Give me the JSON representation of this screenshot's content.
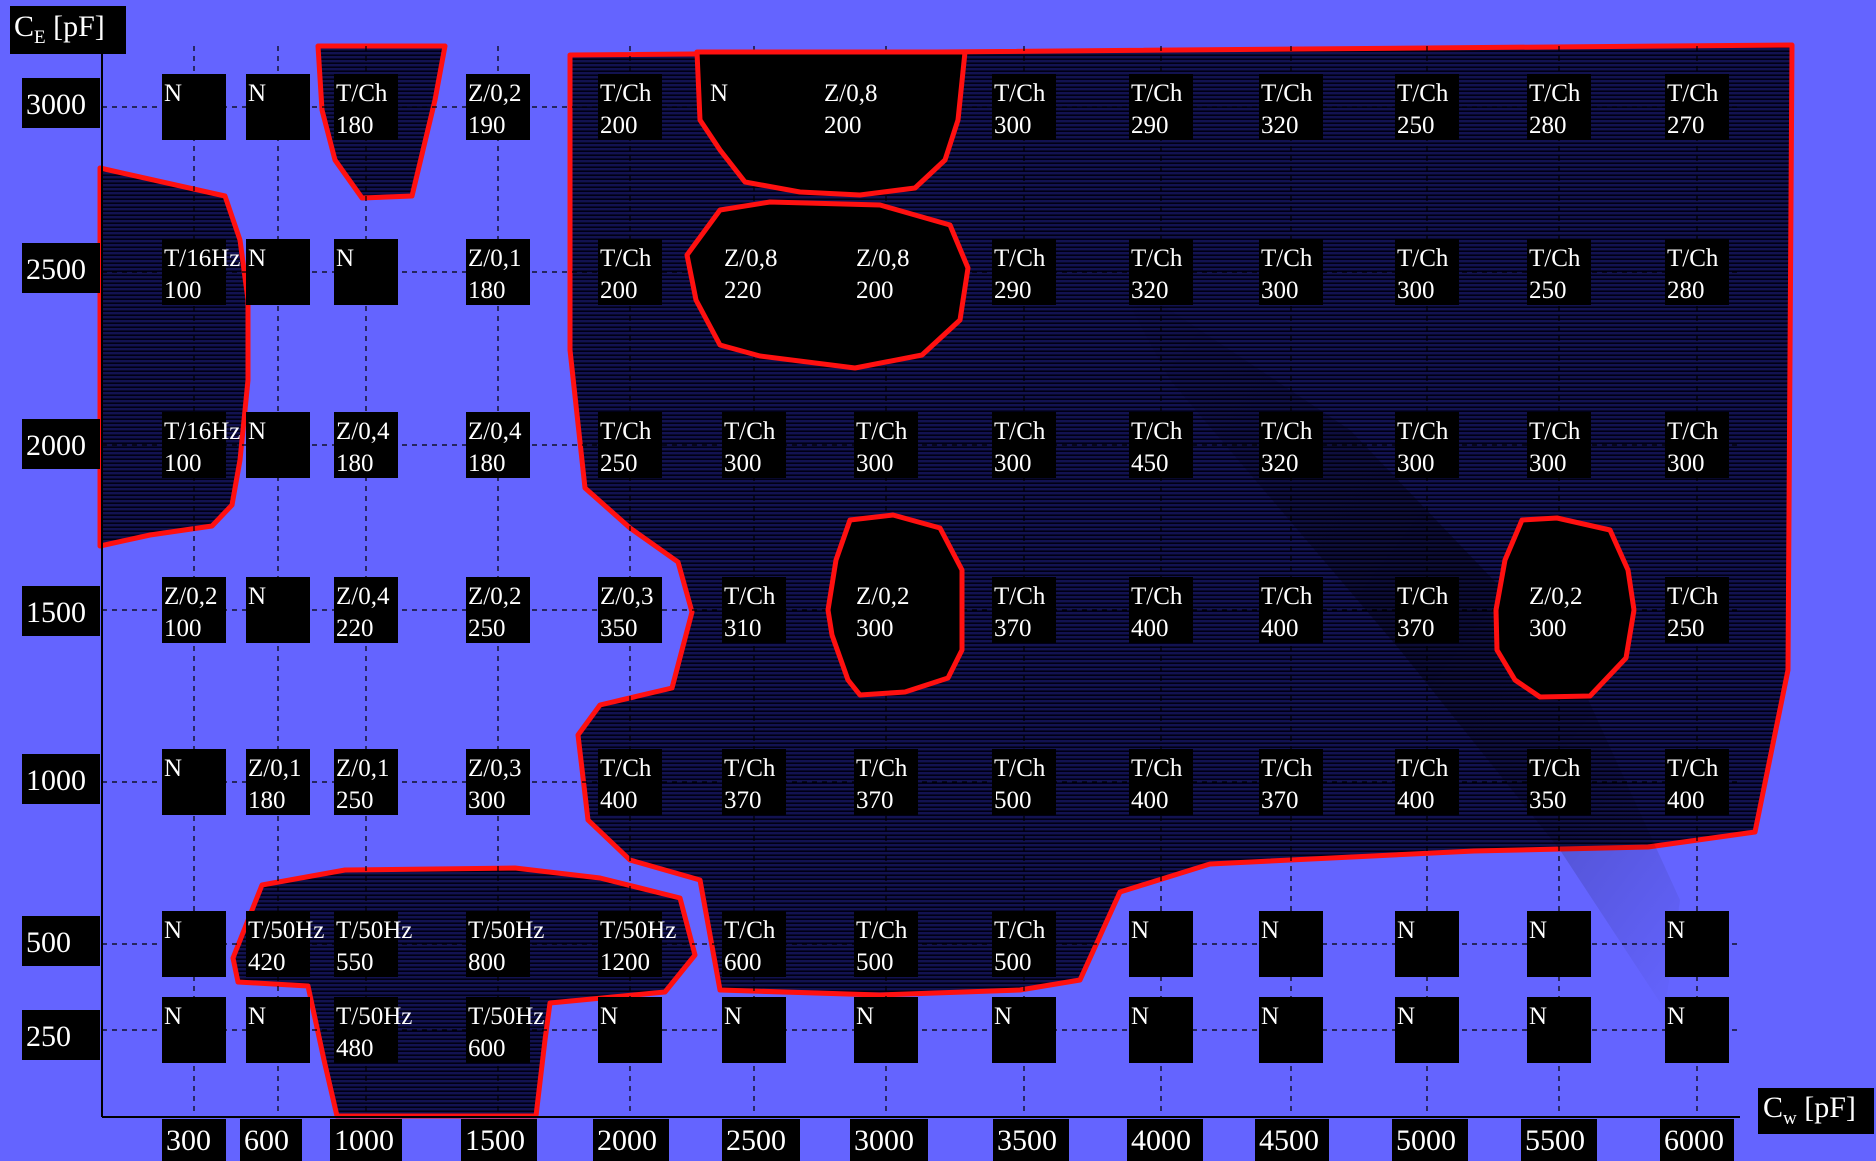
{
  "chart_data": {
    "type": "table",
    "ylabel": {
      "main": "C",
      "sub": "E",
      "unit": " [pF]"
    },
    "xlabel": {
      "main": "C",
      "sub": "w",
      "unit": " [pF]"
    },
    "x_ticks": [
      "300",
      "600",
      "1000",
      "1500",
      "2000",
      "2500",
      "3000",
      "3500",
      "4000",
      "4500",
      "5000",
      "5500",
      "6000"
    ],
    "y_ticks": [
      "3000",
      "2500",
      "2000",
      "1500",
      "1000",
      "500",
      "250"
    ],
    "rows": [
      {
        "ce": "3000",
        "cells": [
          [
            "N",
            ""
          ],
          [
            "N",
            ""
          ],
          [
            "T/Ch",
            "180"
          ],
          [
            "Z/0,2",
            "190"
          ],
          [
            "T/Ch",
            "200"
          ],
          [
            "N",
            ""
          ],
          [
            "Z/0,8",
            "200"
          ],
          [
            "T/Ch",
            "300"
          ],
          [
            "T/Ch",
            "290"
          ],
          [
            "T/Ch",
            "320"
          ],
          [
            "T/Ch",
            "250"
          ],
          [
            "T/Ch",
            "280"
          ],
          [
            "T/Ch",
            "270"
          ]
        ]
      },
      {
        "ce": "2500",
        "cells": [
          [
            "T/16Hz",
            "100"
          ],
          [
            "N",
            ""
          ],
          [
            "N",
            ""
          ],
          [
            "Z/0,1",
            "180"
          ],
          [
            "T/Ch",
            "200"
          ],
          [
            "Z/0,8",
            "220"
          ],
          [
            "Z/0,8",
            "200"
          ],
          [
            "T/Ch",
            "290"
          ],
          [
            "T/Ch",
            "320"
          ],
          [
            "T/Ch",
            "300"
          ],
          [
            "T/Ch",
            "300"
          ],
          [
            "T/Ch",
            "250"
          ],
          [
            "T/Ch",
            "280"
          ]
        ]
      },
      {
        "ce": "2000",
        "cells": [
          [
            "T/16Hz",
            "100"
          ],
          [
            "N",
            ""
          ],
          [
            "Z/0,4",
            "180"
          ],
          [
            "Z/0,4",
            "180"
          ],
          [
            "T/Ch",
            "250"
          ],
          [
            "T/Ch",
            "300"
          ],
          [
            "T/Ch",
            "300"
          ],
          [
            "T/Ch",
            "300"
          ],
          [
            "T/Ch",
            "450"
          ],
          [
            "T/Ch",
            "320"
          ],
          [
            "T/Ch",
            "300"
          ],
          [
            "T/Ch",
            "300"
          ],
          [
            "T/Ch",
            "300"
          ]
        ]
      },
      {
        "ce": "1500",
        "cells": [
          [
            "Z/0,2",
            "100"
          ],
          [
            "N",
            ""
          ],
          [
            "Z/0,4",
            "220"
          ],
          [
            "Z/0,2",
            "250"
          ],
          [
            "Z/0,3",
            "350"
          ],
          [
            "T/Ch",
            "310"
          ],
          [
            "Z/0,2",
            "300"
          ],
          [
            "T/Ch",
            "370"
          ],
          [
            "T/Ch",
            "400"
          ],
          [
            "T/Ch",
            "400"
          ],
          [
            "T/Ch",
            "370"
          ],
          [
            "Z/0,2",
            "300"
          ],
          [
            "T/Ch",
            "250"
          ]
        ]
      },
      {
        "ce": "1000",
        "cells": [
          [
            "N",
            ""
          ],
          [
            "Z/0,1",
            "180"
          ],
          [
            "Z/0,1",
            "250"
          ],
          [
            "Z/0,3",
            "300"
          ],
          [
            "T/Ch",
            "400"
          ],
          [
            "T/Ch",
            "370"
          ],
          [
            "T/Ch",
            "370"
          ],
          [
            "T/Ch",
            "500"
          ],
          [
            "T/Ch",
            "400"
          ],
          [
            "T/Ch",
            "370"
          ],
          [
            "T/Ch",
            "400"
          ],
          [
            "T/Ch",
            "350"
          ],
          [
            "T/Ch",
            "400"
          ]
        ]
      },
      {
        "ce": "500",
        "cells": [
          [
            "N",
            ""
          ],
          [
            "T/50Hz",
            "420"
          ],
          [
            "T/50Hz",
            "550"
          ],
          [
            "T/50Hz",
            "800"
          ],
          [
            "T/50Hz",
            "1200"
          ],
          [
            "T/Ch",
            "600"
          ],
          [
            "T/Ch",
            "500"
          ],
          [
            "T/Ch",
            "500"
          ],
          [
            "N",
            ""
          ],
          [
            "N",
            ""
          ],
          [
            "N",
            ""
          ],
          [
            "N",
            ""
          ],
          [
            "N",
            ""
          ]
        ]
      },
      {
        "ce": "250",
        "cells": [
          [
            "N",
            ""
          ],
          [
            "N",
            ""
          ],
          [
            "T/50Hz",
            "480"
          ],
          [
            "T/50Hz",
            "600"
          ],
          [
            "N",
            ""
          ],
          [
            "N",
            ""
          ],
          [
            "N",
            ""
          ],
          [
            "N",
            ""
          ],
          [
            "N",
            ""
          ],
          [
            "N",
            ""
          ],
          [
            "N",
            ""
          ],
          [
            "N",
            ""
          ],
          [
            "N",
            ""
          ]
        ]
      }
    ],
    "colors": {
      "background": "#6464FF",
      "region_fill": "#0A0A3C",
      "boundary": "#FF1010",
      "cell": "#000000",
      "text": "#FFFFFF"
    }
  }
}
